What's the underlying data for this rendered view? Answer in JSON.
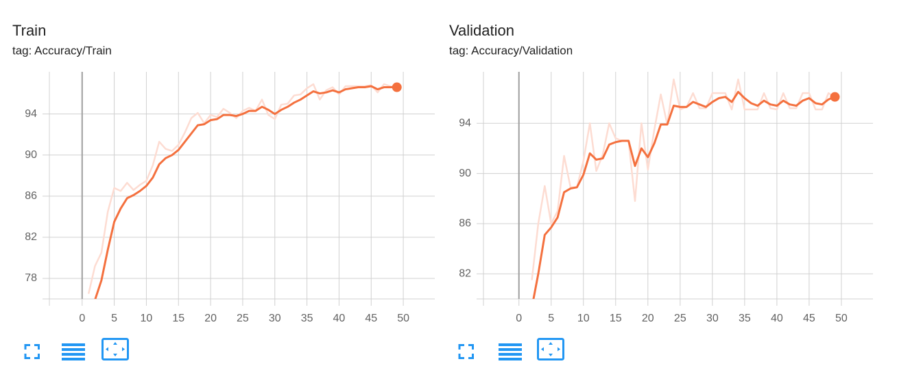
{
  "chart_data": [
    {
      "type": "line",
      "title": "Train",
      "subtitle": "tag: Accuracy/Train",
      "x": [
        0,
        1,
        2,
        3,
        4,
        5,
        6,
        7,
        8,
        9,
        10,
        11,
        12,
        13,
        14,
        15,
        16,
        17,
        18,
        19,
        20,
        21,
        22,
        23,
        24,
        25,
        26,
        27,
        28,
        29,
        30,
        31,
        32,
        33,
        34,
        35,
        36,
        37,
        38,
        39,
        40,
        41,
        42,
        43,
        44,
        45,
        46,
        47,
        48,
        49
      ],
      "xlim": [
        -5.1,
        54.9
      ],
      "xticks": [
        0,
        5,
        10,
        15,
        20,
        25,
        30,
        35,
        40,
        45,
        50
      ],
      "ylim": [
        76,
        98.1
      ],
      "yticks": [
        78,
        82,
        86,
        90,
        94
      ],
      "grid": true,
      "series": [
        {
          "color": "#fddcd2",
          "values": [
            null,
            76.5,
            79.2,
            80.5,
            84.5,
            86.8,
            86.5,
            87.3,
            86.6,
            87.1,
            87.5,
            89,
            91.3,
            90.6,
            90.4,
            91,
            92.2,
            93.6,
            94.1,
            93.1,
            93.9,
            93.7,
            94.5,
            94.1,
            93.6,
            94.3,
            94.6,
            94.3,
            95.4,
            93.9,
            93.5,
            94.9,
            95,
            95.8,
            95.9,
            96.5,
            96.9,
            95.4,
            96.3,
            96.6,
            95.9,
            96.7,
            96.7,
            96.7,
            96.7,
            96.8,
            96.1,
            96.9,
            96.7,
            96.6
          ]
        },
        {
          "color": "#f4703e",
          "end_marker": true,
          "values": [
            null,
            null,
            75.9,
            77.8,
            80.8,
            83.5,
            84.8,
            85.8,
            86.1,
            86.5,
            87,
            87.8,
            89.1,
            89.7,
            90,
            90.5,
            91.3,
            92.1,
            92.9,
            93,
            93.4,
            93.5,
            93.9,
            93.9,
            93.8,
            94,
            94.3,
            94.3,
            94.7,
            94.4,
            94,
            94.4,
            94.7,
            95.1,
            95.4,
            95.8,
            96.2,
            96,
            96.1,
            96.3,
            96.1,
            96.4,
            96.5,
            96.6,
            96.6,
            96.7,
            96.4,
            96.6,
            96.6,
            96.6
          ]
        }
      ]
    },
    {
      "type": "line",
      "title": "Validation",
      "subtitle": "tag: Accuracy/Validation",
      "x": [
        0,
        1,
        2,
        3,
        4,
        5,
        6,
        7,
        8,
        9,
        10,
        11,
        12,
        13,
        14,
        15,
        16,
        17,
        18,
        19,
        20,
        21,
        22,
        23,
        24,
        25,
        26,
        27,
        28,
        29,
        30,
        31,
        32,
        33,
        34,
        35,
        36,
        37,
        38,
        39,
        40,
        41,
        42,
        43,
        44,
        45,
        46,
        47,
        48,
        49
      ],
      "xlim": [
        -5.5,
        54.9
      ],
      "xticks": [
        0,
        5,
        10,
        15,
        20,
        25,
        30,
        35,
        40,
        45,
        50
      ],
      "ylim": [
        80,
        98.1
      ],
      "yticks": [
        82,
        86,
        90,
        94
      ],
      "grid": true,
      "series": [
        {
          "color": "#fddcd2",
          "values": [
            null,
            null,
            81.5,
            86,
            89,
            86,
            87,
            91.4,
            88.9,
            88.9,
            91,
            94,
            90.2,
            91.5,
            94,
            92.8,
            92.6,
            92.6,
            87.8,
            94,
            90.3,
            93.5,
            96.3,
            93.9,
            97.5,
            95.1,
            95.3,
            96.4,
            95.2,
            95.2,
            96.4,
            96.4,
            96.4,
            95.1,
            97.5,
            95.1,
            95.1,
            95.1,
            96.4,
            95.2,
            95.1,
            96.4,
            95.2,
            95.2,
            96.4,
            96.4,
            95.1,
            95.1,
            96.4,
            96.1
          ]
        },
        {
          "color": "#f4703e",
          "end_marker": true,
          "values": [
            null,
            null,
            79.3,
            82,
            85.1,
            85.7,
            86.5,
            88.5,
            88.8,
            88.9,
            89.9,
            91.6,
            91.1,
            91.2,
            92.3,
            92.5,
            92.6,
            92.6,
            90.6,
            92,
            91.3,
            92.4,
            93.9,
            93.9,
            95.4,
            95.3,
            95.3,
            95.7,
            95.5,
            95.3,
            95.7,
            96,
            96.1,
            95.7,
            96.5,
            96,
            95.6,
            95.4,
            95.8,
            95.5,
            95.4,
            95.8,
            95.5,
            95.4,
            95.8,
            96,
            95.6,
            95.5,
            95.9,
            96.1
          ]
        }
      ]
    }
  ]
}
